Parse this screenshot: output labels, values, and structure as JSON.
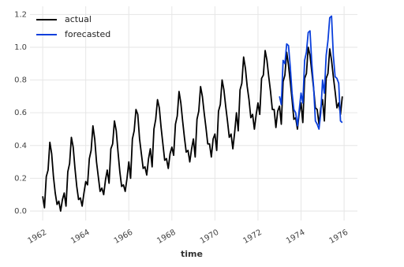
{
  "chart_data": {
    "type": "line",
    "xlabel": "time",
    "xlim": [
      1961.41,
      1976.62
    ],
    "ylim": [
      -0.058,
      1.25
    ],
    "xticks": [
      1962,
      1964,
      1966,
      1968,
      1970,
      1972,
      1974,
      1976
    ],
    "yticks": [
      {
        "value": 0,
        "label": "0.0"
      },
      0.2,
      0.4,
      0.6,
      0.8,
      {
        "value": 1,
        "label": "1.0"
      },
      1.2
    ],
    "grid": true,
    "legend": "upper left",
    "x": [
      1962,
      1962.083,
      1962.167,
      1962.25,
      1962.333,
      1962.417,
      1962.5,
      1962.583,
      1962.667,
      1962.75,
      1962.833,
      1962.917,
      1963,
      1963.083,
      1963.167,
      1963.25,
      1963.333,
      1963.417,
      1963.5,
      1963.583,
      1963.667,
      1963.75,
      1963.833,
      1963.917,
      1964,
      1964.083,
      1964.167,
      1964.25,
      1964.333,
      1964.417,
      1964.5,
      1964.583,
      1964.667,
      1964.75,
      1964.833,
      1964.917,
      1965,
      1965.083,
      1965.167,
      1965.25,
      1965.333,
      1965.417,
      1965.5,
      1965.583,
      1965.667,
      1965.75,
      1965.833,
      1965.917,
      1966,
      1966.083,
      1966.167,
      1966.25,
      1966.333,
      1966.417,
      1966.5,
      1966.583,
      1966.667,
      1966.75,
      1966.833,
      1966.917,
      1967,
      1967.083,
      1967.167,
      1967.25,
      1967.333,
      1967.417,
      1967.5,
      1967.583,
      1967.667,
      1967.75,
      1967.833,
      1967.917,
      1968,
      1968.083,
      1968.167,
      1968.25,
      1968.333,
      1968.417,
      1968.5,
      1968.583,
      1968.667,
      1968.75,
      1968.833,
      1968.917,
      1969,
      1969.083,
      1969.167,
      1969.25,
      1969.333,
      1969.417,
      1969.5,
      1969.583,
      1969.667,
      1969.75,
      1969.833,
      1969.917,
      1970,
      1970.083,
      1970.167,
      1970.25,
      1970.333,
      1970.417,
      1970.5,
      1970.583,
      1970.667,
      1970.75,
      1970.833,
      1970.917,
      1971,
      1971.083,
      1971.167,
      1971.25,
      1971.333,
      1971.417,
      1971.5,
      1971.583,
      1971.667,
      1971.75,
      1971.833,
      1971.917,
      1972,
      1972.083,
      1972.167,
      1972.25,
      1972.333,
      1972.417,
      1972.5,
      1972.583,
      1972.667,
      1972.75,
      1972.833,
      1972.917,
      1973,
      1973.083,
      1973.167,
      1973.25,
      1973.333,
      1973.417,
      1973.5,
      1973.583,
      1973.667,
      1973.75,
      1973.833,
      1973.917,
      1974,
      1974.083,
      1974.167,
      1974.25,
      1974.333,
      1974.417,
      1974.5,
      1974.583,
      1974.667,
      1974.75,
      1974.833,
      1974.917,
      1975,
      1975.083,
      1975.167,
      1975.25,
      1975.333,
      1975.417,
      1975.5,
      1975.583,
      1975.667,
      1975.75,
      1975.833,
      1975.917
    ],
    "series": [
      {
        "name": "actual",
        "color": "#000000",
        "values": [
          0.09,
          0.02,
          0.21,
          0.25,
          0.42,
          0.35,
          0.21,
          0.11,
          0.04,
          0.06,
          0,
          0.07,
          0.11,
          0.03,
          0.24,
          0.29,
          0.45,
          0.39,
          0.26,
          0.15,
          0.07,
          0.08,
          0.03,
          0.11,
          0.18,
          0.16,
          0.32,
          0.37,
          0.52,
          0.44,
          0.3,
          0.21,
          0.12,
          0.14,
          0.1,
          0.19,
          0.25,
          0.17,
          0.38,
          0.41,
          0.55,
          0.49,
          0.36,
          0.24,
          0.15,
          0.16,
          0.12,
          0.2,
          0.3,
          0.2,
          0.44,
          0.49,
          0.62,
          0.59,
          0.44,
          0.35,
          0.26,
          0.27,
          0.22,
          0.32,
          0.38,
          0.27,
          0.5,
          0.56,
          0.68,
          0.63,
          0.51,
          0.41,
          0.31,
          0.32,
          0.26,
          0.35,
          0.39,
          0.34,
          0.53,
          0.58,
          0.73,
          0.66,
          0.55,
          0.45,
          0.36,
          0.37,
          0.3,
          0.38,
          0.44,
          0.33,
          0.56,
          0.61,
          0.76,
          0.7,
          0.6,
          0.51,
          0.41,
          0.41,
          0.33,
          0.44,
          0.47,
          0.37,
          0.61,
          0.65,
          0.8,
          0.74,
          0.64,
          0.55,
          0.45,
          0.47,
          0.38,
          0.48,
          0.6,
          0.49,
          0.74,
          0.78,
          0.94,
          0.87,
          0.76,
          0.68,
          0.57,
          0.59,
          0.5,
          0.59,
          0.66,
          0.59,
          0.81,
          0.83,
          0.98,
          0.92,
          0.82,
          0.73,
          0.62,
          0.62,
          0.51,
          0.61,
          0.64,
          0.53,
          0.79,
          0.83,
          0.97,
          0.89,
          0.79,
          0.68,
          0.56,
          0.57,
          0.5,
          0.6,
          0.66,
          0.54,
          0.81,
          0.84,
          1,
          0.95,
          0.85,
          0.75,
          0.63,
          0.62,
          0.53,
          0.63,
          0.68,
          0.55,
          0.81,
          0.84,
          0.99,
          0.92,
          0.82,
          0.73,
          0.63,
          0.66,
          0.59,
          0.7
        ]
      },
      {
        "name": "forecasted",
        "color": "#0a3fdc",
        "values": [
          null,
          null,
          null,
          null,
          null,
          null,
          null,
          null,
          null,
          null,
          null,
          null,
          null,
          null,
          null,
          null,
          null,
          null,
          null,
          null,
          null,
          null,
          null,
          null,
          null,
          null,
          null,
          null,
          null,
          null,
          null,
          null,
          null,
          null,
          null,
          null,
          null,
          null,
          null,
          null,
          null,
          null,
          null,
          null,
          null,
          null,
          null,
          null,
          null,
          null,
          null,
          null,
          null,
          null,
          null,
          null,
          null,
          null,
          null,
          null,
          null,
          null,
          null,
          null,
          null,
          null,
          null,
          null,
          null,
          null,
          null,
          null,
          null,
          null,
          null,
          null,
          null,
          null,
          null,
          null,
          null,
          null,
          null,
          null,
          null,
          null,
          null,
          null,
          null,
          null,
          null,
          null,
          null,
          null,
          null,
          null,
          null,
          null,
          null,
          null,
          null,
          null,
          null,
          null,
          null,
          null,
          null,
          null,
          null,
          null,
          null,
          null,
          null,
          null,
          null,
          null,
          null,
          null,
          null,
          null,
          null,
          null,
          null,
          null,
          null,
          null,
          null,
          null,
          null,
          null,
          null,
          null,
          0.7,
          0.65,
          0.92,
          0.9,
          1.02,
          1.01,
          0.88,
          0.72,
          0.62,
          0.6,
          0.52,
          0.62,
          0.72,
          0.66,
          0.92,
          0.97,
          1.09,
          1.1,
          0.9,
          0.76,
          0.55,
          0.53,
          0.5,
          0.6,
          0.8,
          0.72,
          0.95,
          1.04,
          1.18,
          1.19,
          0.95,
          0.82,
          0.81,
          0.78,
          0.55,
          0.54
        ]
      }
    ]
  }
}
